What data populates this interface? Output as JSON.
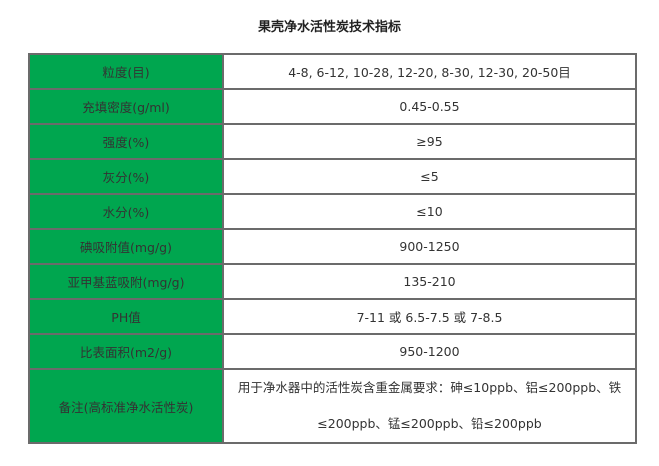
{
  "title": "果壳净水活性炭技术指标",
  "colors": {
    "label_bg": "#00a64f",
    "border": "#6b6b6b"
  },
  "rows": [
    {
      "label": "粒度(目)",
      "value": "4-8, 6-12, 10-28, 12-20, 8-30, 12-30, 20-50目"
    },
    {
      "label": "充填密度(g/ml)",
      "value": "0.45-0.55"
    },
    {
      "label": "强度(%)",
      "value": "≥95"
    },
    {
      "label": "灰分(%)",
      "value": "≤5"
    },
    {
      "label": "水分(%)",
      "value": "≤10"
    },
    {
      "label": "碘吸附值(mg/g)",
      "value": "900-1250"
    },
    {
      "label": "亚甲基蓝吸附(mg/g)",
      "value": "135-210"
    },
    {
      "label": "PH值",
      "value": "7-11 或 6.5-7.5 或 7-8.5"
    },
    {
      "label": "比表面积(m2/g)",
      "value": "950-1200"
    },
    {
      "label": "备注(高标准净水活性炭)",
      "value": "用于净水器中的活性炭含重金属要求：砷≤10ppb、铝≤200ppb、铁≤200ppb、锰≤200ppb、铅≤200ppb"
    }
  ]
}
